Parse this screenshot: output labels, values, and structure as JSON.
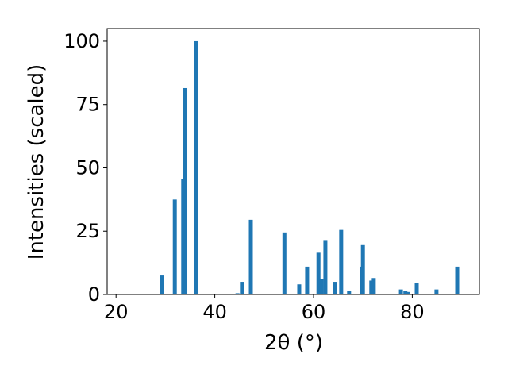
{
  "chart_data": {
    "type": "bar",
    "xlabel": "2θ (°)",
    "ylabel": "Intensities (scaled)",
    "x": [
      29.3,
      31.9,
      33.6,
      34.0,
      36.2,
      44.6,
      45.5,
      47.3,
      54.1,
      57.1,
      58.7,
      61.0,
      61.6,
      62.4,
      64.3,
      65.6,
      67.2,
      69.8,
      70.0,
      71.7,
      72.2,
      77.7,
      78.6,
      79.1,
      80.9,
      84.9,
      89.1
    ],
    "values": [
      7.5,
      37.5,
      45.5,
      81.5,
      100,
      0.5,
      5,
      29.5,
      24.5,
      4,
      11,
      16.5,
      6,
      21.5,
      5,
      25.5,
      1.5,
      11,
      19.5,
      5.5,
      6.5,
      2,
      1.5,
      1,
      4.5,
      2,
      11
    ],
    "color": "#1f77b4",
    "xlim": [
      18.2,
      93.6
    ],
    "xticks": [
      20,
      40,
      60,
      80
    ],
    "ylim": [
      0,
      105
    ],
    "yticks": [
      0,
      25,
      50,
      75,
      100
    ]
  }
}
